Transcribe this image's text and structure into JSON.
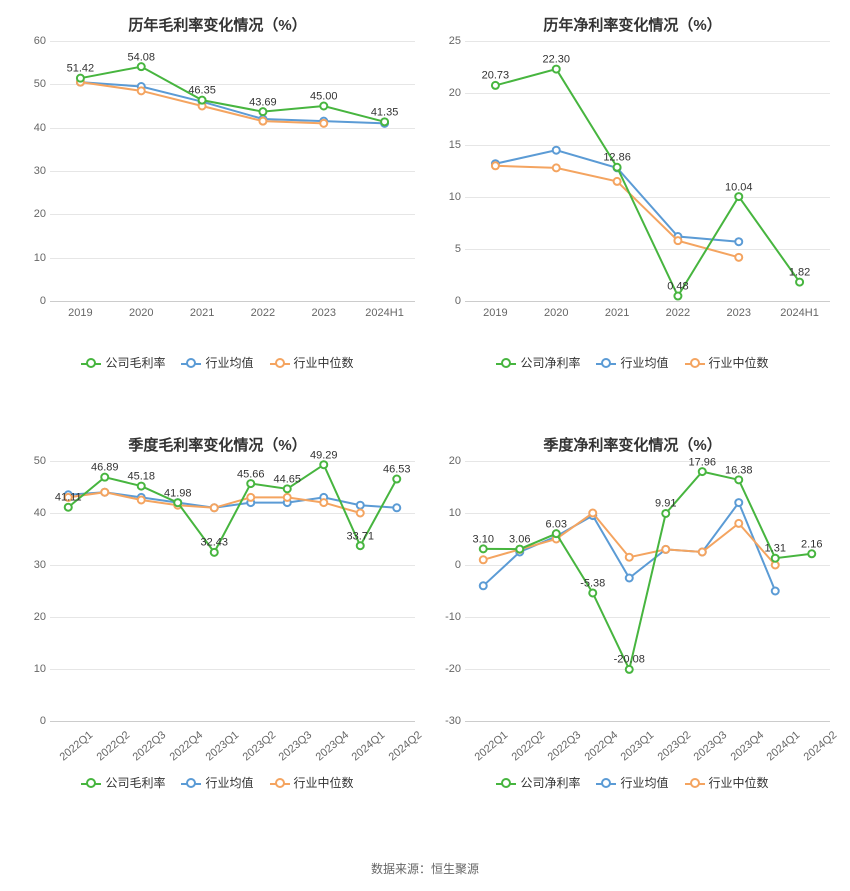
{
  "colors": {
    "company": "#47b53f",
    "avg": "#5b9bd5",
    "median": "#f4a460",
    "grid": "#e6e6e6",
    "axis": "#cccccc",
    "text": "#333333",
    "tick": "#666666"
  },
  "legend_labels": {
    "company_gross": "公司毛利率",
    "company_net": "公司净利率",
    "avg": "行业均值",
    "median": "行业中位数"
  },
  "charts": [
    {
      "id": "annual-gross",
      "title": "历年毛利率变化情况（%）",
      "ymin": 0,
      "ymax": 60,
      "ystep": 10,
      "categories": [
        "2019",
        "2020",
        "2021",
        "2022",
        "2023",
        "2024H1"
      ],
      "xtick_rotate": false,
      "series": [
        {
          "key": "company",
          "color": "#47b53f",
          "label_key": "company_gross",
          "show_labels": true,
          "values": [
            51.42,
            54.08,
            46.35,
            43.69,
            45.0,
            41.35
          ]
        },
        {
          "key": "avg",
          "color": "#5b9bd5",
          "label_key": "avg",
          "show_labels": false,
          "values": [
            50.5,
            49.5,
            46.0,
            42.0,
            41.5,
            41.0
          ]
        },
        {
          "key": "median",
          "color": "#f4a460",
          "label_key": "median",
          "show_labels": false,
          "values": [
            50.5,
            48.5,
            45.0,
            41.5,
            41.0,
            null
          ]
        }
      ]
    },
    {
      "id": "annual-net",
      "title": "历年净利率变化情况（%）",
      "ymin": 0,
      "ymax": 25,
      "ystep": 5,
      "categories": [
        "2019",
        "2020",
        "2021",
        "2022",
        "2023",
        "2024H1"
      ],
      "xtick_rotate": false,
      "series": [
        {
          "key": "company",
          "color": "#47b53f",
          "label_key": "company_net",
          "show_labels": true,
          "values": [
            20.73,
            22.3,
            12.86,
            0.48,
            10.04,
            1.82
          ]
        },
        {
          "key": "avg",
          "color": "#5b9bd5",
          "label_key": "avg",
          "show_labels": false,
          "values": [
            13.2,
            14.5,
            12.8,
            6.2,
            5.7,
            null
          ]
        },
        {
          "key": "median",
          "color": "#f4a460",
          "label_key": "median",
          "show_labels": false,
          "values": [
            13.0,
            12.8,
            11.5,
            5.8,
            4.2,
            null
          ]
        }
      ]
    },
    {
      "id": "quarter-gross",
      "title": "季度毛利率变化情况（%）",
      "ymin": 0,
      "ymax": 50,
      "ystep": 10,
      "categories": [
        "2022Q1",
        "2022Q2",
        "2022Q3",
        "2022Q4",
        "2023Q1",
        "2023Q2",
        "2023Q3",
        "2023Q4",
        "2024Q1",
        "2024Q2"
      ],
      "xtick_rotate": true,
      "series": [
        {
          "key": "company",
          "color": "#47b53f",
          "label_key": "company_gross",
          "show_labels": true,
          "values": [
            41.11,
            46.89,
            45.18,
            41.98,
            32.43,
            45.66,
            44.65,
            49.29,
            33.71,
            46.53
          ]
        },
        {
          "key": "avg",
          "color": "#5b9bd5",
          "label_key": "avg",
          "show_labels": false,
          "values": [
            43.5,
            44.0,
            43.0,
            42.0,
            41.0,
            42.0,
            42.0,
            43.0,
            41.5,
            41.0
          ]
        },
        {
          "key": "median",
          "color": "#f4a460",
          "label_key": "median",
          "show_labels": false,
          "values": [
            43.0,
            44.0,
            42.5,
            41.5,
            41.0,
            43.0,
            43.0,
            42.0,
            40.0,
            null
          ]
        }
      ]
    },
    {
      "id": "quarter-net",
      "title": "季度净利率变化情况（%）",
      "ymin": -30,
      "ymax": 20,
      "ystep": 10,
      "categories": [
        "2022Q1",
        "2022Q2",
        "2022Q3",
        "2022Q4",
        "2023Q1",
        "2023Q2",
        "2023Q3",
        "2023Q4",
        "2024Q1",
        "2024Q2"
      ],
      "xtick_rotate": true,
      "series": [
        {
          "key": "company",
          "color": "#47b53f",
          "label_key": "company_net",
          "show_labels": true,
          "values": [
            3.1,
            3.06,
            6.03,
            -5.38,
            -20.08,
            9.91,
            17.96,
            16.38,
            1.31,
            2.16
          ]
        },
        {
          "key": "avg",
          "color": "#5b9bd5",
          "label_key": "avg",
          "show_labels": false,
          "values": [
            -4.0,
            2.5,
            5.5,
            9.5,
            -2.5,
            3.0,
            2.5,
            12.0,
            -5.0,
            null
          ]
        },
        {
          "key": "median",
          "color": "#f4a460",
          "label_key": "median",
          "show_labels": false,
          "values": [
            1.0,
            3.0,
            5.0,
            10.0,
            1.5,
            3.0,
            2.5,
            8.0,
            0.0,
            null
          ]
        }
      ]
    }
  ],
  "footer": "数据来源：恒生聚源"
}
